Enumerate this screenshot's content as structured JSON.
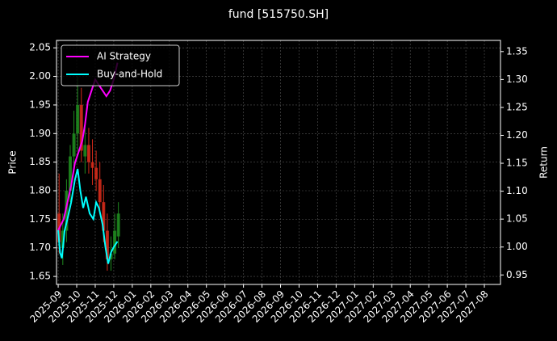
{
  "chart_data": {
    "type": "candlestick-line",
    "title": "fund [515750.SH]",
    "ylabel": "Price",
    "y2label": "Return",
    "xlim": [
      -0.09,
      23.87
    ],
    "xticks": [
      {
        "value": 0,
        "label": "2025-09"
      },
      {
        "value": 1,
        "label": "2025-10"
      },
      {
        "value": 2,
        "label": "2025-11"
      },
      {
        "value": 3,
        "label": "2025-12"
      },
      {
        "value": 4,
        "label": "2026-01"
      },
      {
        "value": 5,
        "label": "2026-02"
      },
      {
        "value": 6,
        "label": "2026-03"
      },
      {
        "value": 7,
        "label": "2026-04"
      },
      {
        "value": 8,
        "label": "2026-05"
      },
      {
        "value": 9,
        "label": "2026-06"
      },
      {
        "value": 10,
        "label": "2026-07"
      },
      {
        "value": 11,
        "label": "2026-08"
      },
      {
        "value": 12,
        "label": "2026-09"
      },
      {
        "value": 13,
        "label": "2026-10"
      },
      {
        "value": 14,
        "label": "2026-11"
      },
      {
        "value": 15,
        "label": "2026-12"
      },
      {
        "value": 16,
        "label": "2027-01"
      },
      {
        "value": 17,
        "label": "2027-02"
      },
      {
        "value": 18,
        "label": "2027-03"
      },
      {
        "value": 19,
        "label": "2027-04"
      },
      {
        "value": 20,
        "label": "2027-05"
      },
      {
        "value": 21,
        "label": "2027-06"
      },
      {
        "value": 22,
        "label": "2027-07"
      },
      {
        "value": 23,
        "label": "2027-08"
      }
    ],
    "ylim": [
      1.636,
      2.063
    ],
    "yticks": [
      {
        "value": 1.65,
        "label": "1.65"
      },
      {
        "value": 1.7,
        "label": "1.70"
      },
      {
        "value": 1.75,
        "label": "1.75"
      },
      {
        "value": 1.8,
        "label": "1.80"
      },
      {
        "value": 1.85,
        "label": "1.85"
      },
      {
        "value": 1.9,
        "label": "1.90"
      },
      {
        "value": 1.95,
        "label": "1.95"
      },
      {
        "value": 2.0,
        "label": "2.00"
      },
      {
        "value": 2.05,
        "label": "2.05"
      }
    ],
    "y2lim": [
      0.933,
      1.37
    ],
    "y2ticks": [
      {
        "value": 0.95,
        "label": "0.95"
      },
      {
        "value": 1.0,
        "label": "1.00"
      },
      {
        "value": 1.05,
        "label": "1.05"
      },
      {
        "value": 1.1,
        "label": "1.10"
      },
      {
        "value": 1.15,
        "label": "1.15"
      },
      {
        "value": 1.2,
        "label": "1.20"
      },
      {
        "value": 1.25,
        "label": "1.25"
      },
      {
        "value": 1.3,
        "label": "1.30"
      },
      {
        "value": 1.35,
        "label": "1.35"
      }
    ],
    "grid": true,
    "legend": "upper left",
    "up_color": "#1f8a1f",
    "down_color": "#d42a1a",
    "candles": {
      "x": [
        0.05,
        0.25,
        0.45,
        0.65,
        0.85,
        1.05,
        1.25,
        1.45,
        1.65,
        1.85,
        2.05,
        2.25,
        2.45,
        2.65,
        2.85,
        3.05,
        3.25
      ],
      "open": [
        1.76,
        1.7,
        1.73,
        1.8,
        1.86,
        1.9,
        1.95,
        1.86,
        1.88,
        1.85,
        1.84,
        1.82,
        1.78,
        1.73,
        1.68,
        1.69,
        1.72
      ],
      "close": [
        1.71,
        1.73,
        1.8,
        1.86,
        1.9,
        1.95,
        1.87,
        1.88,
        1.85,
        1.84,
        1.82,
        1.78,
        1.73,
        1.68,
        1.69,
        1.73,
        1.76
      ],
      "high": [
        1.83,
        1.76,
        1.82,
        1.88,
        1.94,
        2.0,
        1.98,
        1.92,
        1.91,
        1.89,
        1.87,
        1.85,
        1.81,
        1.76,
        1.72,
        1.76,
        1.78
      ],
      "low": [
        1.69,
        1.67,
        1.71,
        1.78,
        1.84,
        1.87,
        1.85,
        1.83,
        1.83,
        1.81,
        1.8,
        1.76,
        1.71,
        1.66,
        1.66,
        1.68,
        1.7
      ]
    },
    "series": [
      {
        "name": "AI Strategy",
        "color": "#ff00ff",
        "axis": "y2",
        "x": [
          0,
          0.15,
          0.3,
          0.5,
          0.7,
          0.9,
          1.1,
          1.3,
          1.45,
          1.6,
          1.8,
          2.0,
          2.2,
          2.4,
          2.6,
          2.8,
          3.0,
          3.2
        ],
        "values": [
          1.03,
          1.04,
          1.05,
          1.08,
          1.11,
          1.15,
          1.17,
          1.19,
          1.22,
          1.26,
          1.28,
          1.3,
          1.29,
          1.28,
          1.27,
          1.28,
          1.3,
          1.33
        ]
      },
      {
        "name": "Buy-and-Hold",
        "color": "#00ffff",
        "axis": "y2",
        "x": [
          0,
          0.1,
          0.2,
          0.35,
          0.5,
          0.7,
          0.9,
          1.05,
          1.2,
          1.35,
          1.5,
          1.7,
          1.9,
          2.05,
          2.2,
          2.4,
          2.55,
          2.7,
          2.85,
          3.0,
          3.2
        ],
        "values": [
          1.03,
          0.99,
          0.98,
          1.03,
          1.05,
          1.08,
          1.12,
          1.14,
          1.1,
          1.07,
          1.09,
          1.06,
          1.05,
          1.08,
          1.07,
          1.04,
          1.0,
          0.97,
          0.99,
          1.0,
          1.01
        ]
      }
    ]
  }
}
